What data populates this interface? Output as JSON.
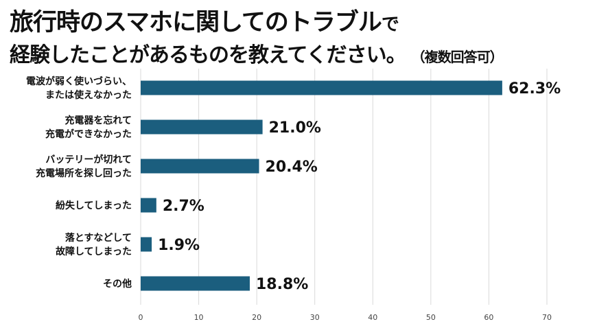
{
  "title": {
    "line1": "旅行時のスマホに関してのトラブル",
    "line1_suffix": "で",
    "line2": "経験したことがあるものを教えてください。",
    "note": "（複数回答可）"
  },
  "chart_data": {
    "type": "bar",
    "orientation": "horizontal",
    "categories": [
      [
        "電波が弱く使いづらい、",
        "または使えなかった"
      ],
      [
        "充電器を忘れて",
        "充電ができなかった"
      ],
      [
        "バッテリーが切れて",
        "充電場所を探し回った"
      ],
      [
        "紛失してしまった"
      ],
      [
        "落とすなどして",
        "故障してしまった"
      ],
      [
        "その他"
      ]
    ],
    "values": [
      62.3,
      21.0,
      20.4,
      2.7,
      1.9,
      18.8
    ],
    "value_labels": [
      "62.3%",
      "21.0%",
      "20.4%",
      "2.7%",
      "1.9%",
      "18.8%"
    ],
    "xlim": [
      0,
      70
    ],
    "xticks": [
      0,
      10,
      20,
      30,
      40,
      50,
      60,
      70
    ],
    "grid": true,
    "bar_color": "#1b5e7e",
    "grid_color": "#d9d9d9"
  }
}
